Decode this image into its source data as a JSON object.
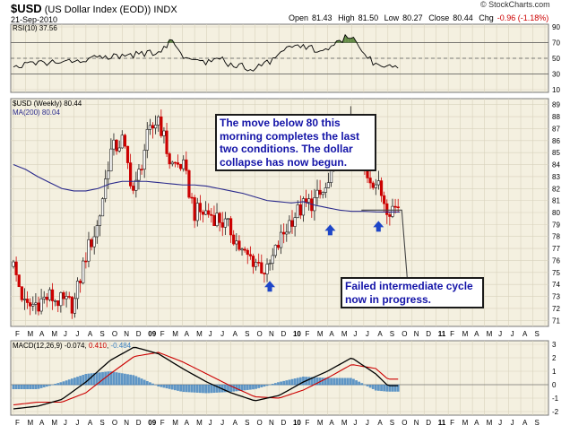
{
  "header": {
    "symbol": "$USD",
    "name": "(US Dollar Index (EOD))",
    "exchange": "INDX",
    "date": "21-Sep-2010",
    "logo": "© StockCharts.com",
    "ohlc": {
      "open_label": "Open",
      "open": "81.43",
      "high_label": "High",
      "high": "81.50",
      "low_label": "Low",
      "low": "80.27",
      "close_label": "Close",
      "close": "80.44",
      "chg_label": "Chg",
      "chg": "-0.96 (-1.18%)"
    }
  },
  "colors": {
    "up": "#1a1a1a",
    "down": "#cc0000",
    "ma": "#2a2a8c",
    "macd": "#000000",
    "signal": "#cc0000",
    "histogram": "#3a7fbf",
    "rsi_line": "#000000",
    "rsi_fill": "#4a7a2a",
    "panel_bg": "#f4f0e0",
    "arrow": "#1e46c8",
    "annotation_text": "#1414a8"
  },
  "annotations": {
    "main_text_lines": [
      "The move below 80 this",
      "morning completes the last",
      "two conditions. The dollar",
      "collapse has now begun."
    ],
    "cycle_text_lines": [
      "Failed intermediate cycle",
      "now in progress."
    ]
  },
  "chart_data": [
    {
      "panel": "rsi",
      "type": "line",
      "title": "RSI(10) 37.56",
      "ylim": [
        10,
        90
      ],
      "y_ticks": [
        10,
        30,
        50,
        70,
        90
      ],
      "reference_levels": [
        30,
        50,
        70
      ],
      "x": [
        "2009-02",
        "2009-03",
        "2009-04",
        "2009-05",
        "2009-06",
        "2009-07",
        "2009-08",
        "2009-09",
        "2009-10",
        "2009-11",
        "2009-12",
        "2010-01",
        "2010-02",
        "2010-03",
        "2010-04",
        "2010-05",
        "2010-06",
        "2010-07",
        "2010-08",
        "2010-09"
      ],
      "series": [
        {
          "name": "RSI(10)",
          "values": [
            56,
            72,
            52,
            48,
            44,
            50,
            42,
            40,
            36,
            44,
            56,
            64,
            66,
            62,
            60,
            72,
            80,
            60,
            40,
            37.56
          ]
        }
      ]
    },
    {
      "panel": "price",
      "type": "candlestick",
      "title": "$USD (Weekly) 80.44",
      "ylim": [
        70.5,
        89.5
      ],
      "y_ticks": [
        71,
        72,
        73,
        74,
        75,
        76,
        77,
        78,
        79,
        80,
        81,
        82,
        83,
        84,
        85,
        86,
        87,
        88,
        89
      ],
      "x_ticks": [
        "F",
        "M",
        "A",
        "M",
        "J",
        "J",
        "A",
        "S",
        "O",
        "N",
        "D",
        "09",
        "F",
        "M",
        "A",
        "M",
        "J",
        "J",
        "A",
        "S",
        "O",
        "N",
        "D",
        "10",
        "F",
        "M",
        "A",
        "M",
        "J",
        "J",
        "A",
        "S",
        "O",
        "N",
        "D",
        "11",
        "F",
        "M",
        "A",
        "M",
        "J",
        "J",
        "A",
        "S"
      ],
      "dates": [
        "2008-02",
        "2008-03",
        "2008-04",
        "2008-05",
        "2008-06",
        "2008-07",
        "2008-08",
        "2008-09",
        "2008-10",
        "2008-11",
        "2008-12",
        "2009-01",
        "2009-02",
        "2009-03",
        "2009-04",
        "2009-05",
        "2009-06",
        "2009-07",
        "2009-08",
        "2009-09",
        "2009-10",
        "2009-11",
        "2009-12",
        "2010-01",
        "2010-02",
        "2010-03",
        "2010-04",
        "2010-05",
        "2010-06",
        "2010-07",
        "2010-08",
        "2010-09"
      ],
      "close": [
        75.5,
        72.0,
        72.5,
        73.0,
        72.5,
        72.3,
        76.5,
        79.0,
        85.0,
        86.0,
        81.5,
        86.0,
        88.0,
        84.0,
        84.0,
        80.0,
        80.0,
        79.5,
        78.5,
        76.5,
        76.0,
        75.0,
        77.5,
        79.5,
        80.5,
        81.0,
        82.0,
        86.0,
        87.5,
        83.5,
        82.5,
        80.44
      ],
      "series": [
        {
          "name": "MA(200) 80.04",
          "values": [
            84.0,
            83.6,
            83.0,
            82.5,
            82.0,
            81.8,
            81.8,
            82.0,
            82.4,
            82.6,
            82.6,
            82.6,
            82.5,
            82.4,
            82.3,
            82.3,
            82.2,
            82.0,
            81.8,
            81.6,
            81.3,
            81.0,
            80.9,
            80.8,
            80.9,
            80.6,
            80.4,
            80.2,
            80.1,
            80.1,
            80.05,
            80.04
          ]
        }
      ],
      "arrows_at": [
        "2009-11",
        "2010-04",
        "2010-08"
      ]
    },
    {
      "panel": "macd",
      "type": "line",
      "title": "MACD(12,26,9)",
      "values_text": [
        "-0.074",
        "0.410",
        "-0.484"
      ],
      "ylim": [
        -2,
        3
      ],
      "y_ticks": [
        -2,
        -1,
        0,
        1,
        2,
        3
      ],
      "x_ticks": [
        "F",
        "M",
        "A",
        "M",
        "J",
        "J",
        "A",
        "S",
        "O",
        "N",
        "D",
        "09",
        "F",
        "M",
        "A",
        "M",
        "J",
        "J",
        "A",
        "S",
        "O",
        "N",
        "D",
        "10",
        "F",
        "M",
        "A",
        "M",
        "J",
        "J",
        "A",
        "S",
        "O",
        "N",
        "D",
        "11",
        "F",
        "M",
        "A",
        "M",
        "J",
        "J",
        "A",
        "S"
      ],
      "dates": [
        "2008-02",
        "2008-04",
        "2008-06",
        "2008-08",
        "2008-10",
        "2008-12",
        "2009-02",
        "2009-04",
        "2009-06",
        "2009-08",
        "2009-10",
        "2009-12",
        "2010-02",
        "2010-04",
        "2010-06",
        "2010-08",
        "2010-09"
      ],
      "series": [
        {
          "name": "MACD",
          "values": [
            -1.8,
            -1.6,
            -1.1,
            0.2,
            1.8,
            2.8,
            2.3,
            1.2,
            0.2,
            -0.6,
            -1.2,
            -0.8,
            0.2,
            1.0,
            2.0,
            0.8,
            -0.074
          ]
        },
        {
          "name": "Signal",
          "values": [
            -1.5,
            -1.3,
            -1.3,
            -0.6,
            0.8,
            2.1,
            2.4,
            1.7,
            0.8,
            -0.1,
            -0.9,
            -1.0,
            -0.4,
            0.5,
            1.5,
            1.2,
            0.41
          ]
        }
      ]
    }
  ]
}
